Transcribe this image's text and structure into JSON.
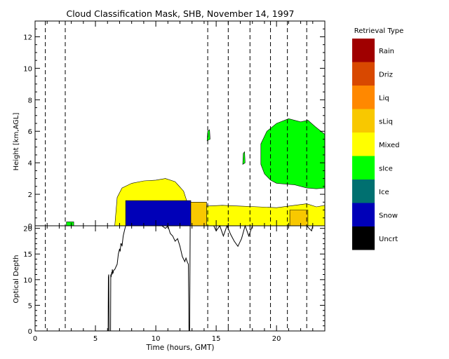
{
  "chart_data": [
    {
      "type": "heatmap",
      "title": "Cloud Classification Mask, SHB, November 14, 1997",
      "ylabel": "Height [km,AGL]",
      "xlim": [
        0,
        24
      ],
      "ylim": [
        0,
        13
      ],
      "yticks": [
        0,
        2,
        4,
        6,
        8,
        10,
        12
      ],
      "legend_title": "Retrieval Type",
      "legend_position": "right",
      "legend": [
        {
          "label": "Rain",
          "color": "#a00000"
        },
        {
          "label": "Driz",
          "color": "#d84800"
        },
        {
          "label": "Liq",
          "color": "#ff8800"
        },
        {
          "label": "sLiq",
          "color": "#f8c800"
        },
        {
          "label": "Mixed",
          "color": "#ffff00"
        },
        {
          "label": "sIce",
          "color": "#00ff00"
        },
        {
          "label": "Ice",
          "color": "#007070"
        },
        {
          "label": "Snow",
          "color": "#0000b8"
        },
        {
          "label": "Uncrt",
          "color": "#000000"
        }
      ],
      "dashed_vertical_lines_hours": [
        0.85,
        2.5,
        14.3,
        16.0,
        17.8,
        19.5,
        20.9,
        22.5
      ],
      "regions": [
        {
          "type": "Mixed",
          "polygon": [
            [
              6.6,
              0
            ],
            [
              6.8,
              1.8
            ],
            [
              7.2,
              2.4
            ],
            [
              8.0,
              2.7
            ],
            [
              9.0,
              2.85
            ],
            [
              10.0,
              2.9
            ],
            [
              10.8,
              3.0
            ],
            [
              11.6,
              2.8
            ],
            [
              12.3,
              2.2
            ],
            [
              12.6,
              1.5
            ],
            [
              12.9,
              1.0
            ],
            [
              13.2,
              0
            ]
          ]
        },
        {
          "type": "Snow",
          "polygon": [
            [
              7.5,
              0
            ],
            [
              7.5,
              1.6
            ],
            [
              12.9,
              1.6
            ],
            [
              12.9,
              0
            ]
          ]
        },
        {
          "type": "sLiq",
          "polygon": [
            [
              12.9,
              0
            ],
            [
              12.9,
              1.5
            ],
            [
              14.2,
              1.5
            ],
            [
              14.2,
              0
            ]
          ]
        },
        {
          "type": "Mixed",
          "polygon": [
            [
              14.2,
              0
            ],
            [
              14.2,
              1.25
            ],
            [
              15.5,
              1.3
            ],
            [
              17.0,
              1.25
            ],
            [
              18.5,
              1.2
            ],
            [
              20.0,
              1.15
            ],
            [
              21.5,
              1.3
            ],
            [
              22.5,
              1.4
            ],
            [
              23.3,
              1.2
            ],
            [
              24.0,
              1.3
            ],
            [
              24.0,
              0
            ]
          ]
        },
        {
          "type": "sLiq",
          "polygon": [
            [
              21.1,
              0
            ],
            [
              21.1,
              1.0
            ],
            [
              22.6,
              1.0
            ],
            [
              22.6,
              0
            ]
          ]
        },
        {
          "type": "sIce",
          "polygon": [
            [
              18.7,
              3.9
            ],
            [
              19.0,
              3.3
            ],
            [
              19.5,
              2.9
            ],
            [
              20.0,
              2.7
            ],
            [
              21.5,
              2.6
            ],
            [
              22.5,
              2.4
            ],
            [
              23.3,
              2.35
            ],
            [
              24.0,
              2.4
            ],
            [
              24.0,
              5.8
            ],
            [
              23.2,
              6.3
            ],
            [
              22.6,
              6.7
            ],
            [
              22.0,
              6.6
            ],
            [
              21.0,
              6.8
            ],
            [
              20.0,
              6.5
            ],
            [
              19.2,
              6.0
            ],
            [
              18.7,
              5.2
            ]
          ]
        },
        {
          "type": "sIce",
          "polygon": [
            [
              2.6,
              0
            ],
            [
              2.6,
              0.25
            ],
            [
              3.2,
              0.25
            ],
            [
              3.2,
              0
            ]
          ]
        },
        {
          "type": "sIce",
          "polygon": [
            [
              17.2,
              3.9
            ],
            [
              17.25,
              4.6
            ],
            [
              17.35,
              4.7
            ],
            [
              17.4,
              4.0
            ]
          ]
        },
        {
          "type": "sIce",
          "polygon": [
            [
              14.25,
              5.4
            ],
            [
              14.3,
              6.0
            ],
            [
              14.45,
              6.1
            ],
            [
              14.5,
              5.5
            ]
          ]
        }
      ]
    },
    {
      "type": "line",
      "xlabel": "Time (hours, GMT)",
      "ylabel": "Optical Depth",
      "xlim": [
        0,
        24
      ],
      "ylim": [
        0,
        20.5
      ],
      "xticks": [
        0,
        5,
        10,
        15,
        20
      ],
      "yticks": [
        0,
        5,
        10,
        15,
        20
      ],
      "dashed_vertical_lines_hours": [
        0.85,
        2.5,
        14.3,
        16.0,
        17.8,
        19.5,
        20.9,
        22.5
      ],
      "x": [
        6.05,
        6.07,
        6.1,
        6.13,
        6.25,
        6.27,
        6.3,
        6.35,
        6.38,
        6.4,
        6.45,
        6.5,
        6.6,
        6.7,
        6.8,
        6.9,
        7.0,
        7.05,
        7.1,
        7.15,
        7.2,
        7.3,
        7.4,
        7.5,
        7.7,
        8.0,
        8.5,
        9.0,
        9.5,
        10.0,
        10.5,
        10.8,
        11.0,
        11.2,
        11.4,
        11.6,
        11.8,
        12.0,
        12.2,
        12.4,
        12.5,
        12.6,
        12.7,
        12.75,
        12.8,
        12.85,
        12.9,
        13.0,
        13.3,
        13.6,
        13.9,
        14.2,
        14.5,
        14.8,
        15.0,
        15.3,
        15.6,
        15.9,
        16.2,
        16.5,
        16.8,
        17.1,
        17.4,
        17.7,
        18.0,
        18.3,
        18.6,
        18.9,
        19.2,
        19.5,
        19.8,
        20.1,
        20.4,
        20.7,
        21.0,
        21.3,
        21.6,
        21.9,
        22.2,
        22.5,
        22.7,
        22.9,
        23.0,
        23.3,
        23.6,
        24.0
      ],
      "y": [
        0,
        10.5,
        11.0,
        0,
        0,
        11.0,
        10.5,
        11.5,
        11.0,
        12.0,
        11.2,
        11.8,
        12.0,
        12.5,
        13.0,
        15.0,
        16.0,
        15.5,
        17.0,
        17.0,
        16.5,
        18.5,
        19.5,
        20.5,
        20.5,
        20.5,
        20.5,
        20.5,
        20.5,
        20.5,
        20.5,
        20.0,
        20.5,
        19.0,
        18.5,
        17.5,
        18.0,
        16.5,
        14.5,
        13.5,
        14.2,
        13.5,
        13.0,
        0,
        0,
        20.5,
        20.5,
        20.5,
        20.5,
        20.5,
        20.5,
        20.5,
        20.5,
        20.5,
        19.5,
        20.5,
        18.5,
        20.5,
        18.8,
        17.5,
        16.5,
        18.0,
        20.5,
        18.5,
        20.5,
        20.5,
        20.5,
        20.5,
        20.5,
        20.5,
        20.5,
        20.5,
        20.5,
        20.5,
        20.5,
        20.5,
        20.5,
        20.5,
        20.5,
        20.5,
        20.0,
        19.5,
        20.5,
        20.5,
        20.5,
        20.5
      ]
    }
  ]
}
